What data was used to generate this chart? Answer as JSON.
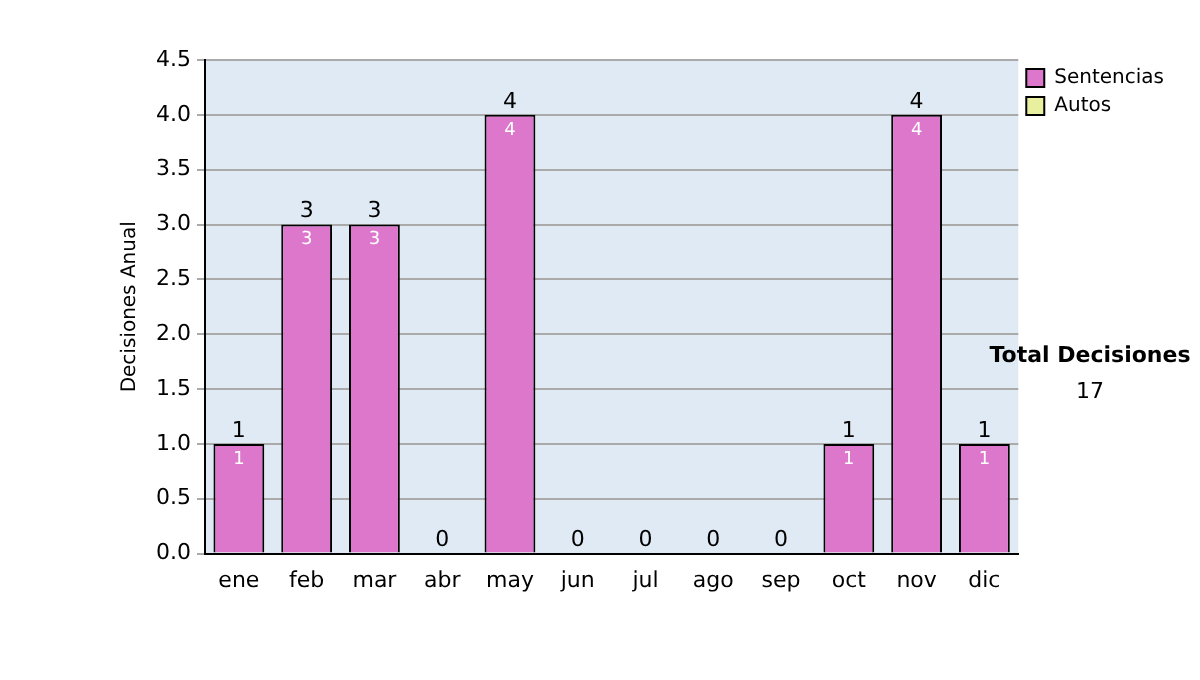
{
  "chart_data": {
    "type": "bar",
    "stacked": true,
    "ylabel": "Decisiones Anual",
    "categories": [
      "ene",
      "feb",
      "mar",
      "abr",
      "may",
      "jun",
      "jul",
      "ago",
      "sep",
      "oct",
      "nov",
      "dic"
    ],
    "series": [
      {
        "name": "Sentencias",
        "color": "#dd77cc",
        "values": [
          1,
          3,
          3,
          0,
          4,
          0,
          0,
          0,
          0,
          1,
          4,
          1
        ],
        "value_labels": [
          "1",
          "3",
          "3",
          null,
          "4",
          null,
          null,
          null,
          null,
          "1",
          "4",
          "1"
        ]
      },
      {
        "name": "Autos",
        "color": "#e8f0a0",
        "values": [
          0,
          0,
          0,
          0,
          0,
          0,
          0,
          0,
          0,
          0,
          0,
          0
        ]
      }
    ],
    "totals": [
      "1",
      "3",
      "3",
      "0",
      "4",
      "0",
      "0",
      "0",
      "0",
      "1",
      "4",
      "1"
    ],
    "ylim": [
      0,
      4.5
    ],
    "yticks": [
      {
        "value": 0,
        "label": "0.0"
      },
      {
        "value": 0.5,
        "label": "0.5"
      },
      {
        "value": 1,
        "label": "1.0"
      },
      {
        "value": 1.5,
        "label": "1.5"
      },
      {
        "value": 2,
        "label": "2.0"
      },
      {
        "value": 2.5,
        "label": "2.5"
      },
      {
        "value": 3,
        "label": "3.0"
      },
      {
        "value": 3.5,
        "label": "3.5"
      },
      {
        "value": 4,
        "label": "4.0"
      },
      {
        "value": 4.5,
        "label": "4.5"
      }
    ],
    "grid": "y",
    "legend": "right",
    "annotations": [
      "Total Decisiones",
      "17"
    ]
  }
}
